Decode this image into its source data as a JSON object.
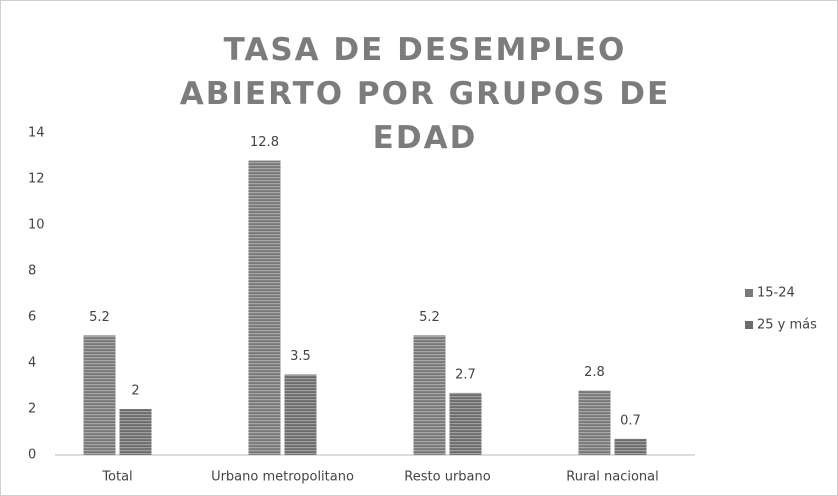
{
  "chart_data": {
    "type": "bar",
    "title": "TASA DE DESEMPLEO ABIERTO POR GRUPOS DE EDAD",
    "categories": [
      "Total",
      "Urbano metropolitano",
      "Resto urbano",
      "Rural nacional"
    ],
    "series": [
      {
        "name": "15-24",
        "color": "#787878",
        "values": [
          5.2,
          12.8,
          5.2,
          2.8
        ]
      },
      {
        "name": "25 y más",
        "color": "#6c6c6c",
        "values": [
          2,
          3.5,
          2.7,
          0.7
        ]
      }
    ],
    "ylim": [
      0,
      14
    ],
    "yticks": [
      0,
      2,
      4,
      6,
      8,
      10,
      12,
      14
    ],
    "grid": false,
    "legend": "right"
  }
}
